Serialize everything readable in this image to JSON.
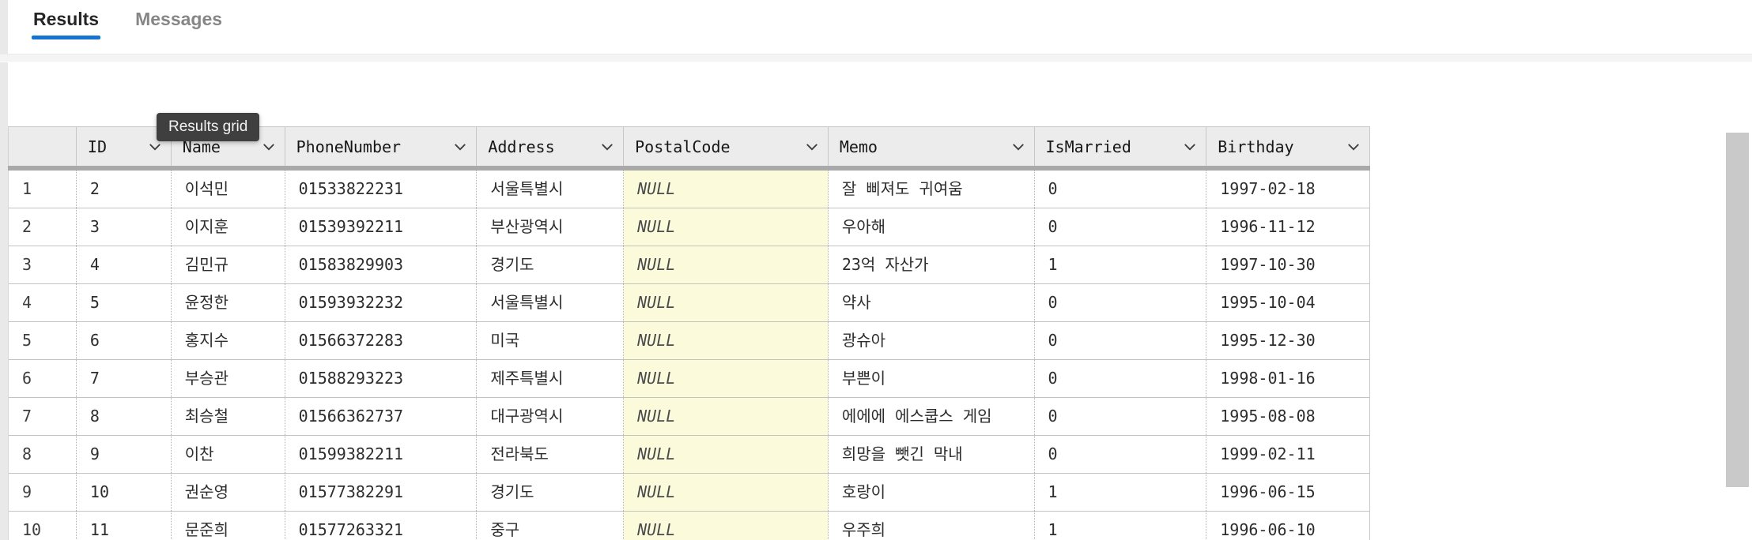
{
  "tabs": [
    {
      "label": "Results",
      "active": true
    },
    {
      "label": "Messages",
      "active": false
    }
  ],
  "tooltip": {
    "text": "Results grid"
  },
  "colors": {
    "active_tab_underline": "#1673d2",
    "tooltip_bg": "#3f3f3f",
    "header_bg": "#ececec",
    "null_cell_bg": "#fbfbdc",
    "scrollbar_thumb": "#c9c9c9"
  },
  "grid": {
    "columns": [
      {
        "label": "ID"
      },
      {
        "label": "Name"
      },
      {
        "label": "PhoneNumber"
      },
      {
        "label": "Address"
      },
      {
        "label": "PostalCode"
      },
      {
        "label": "Memo"
      },
      {
        "label": "IsMarried"
      },
      {
        "label": "Birthday"
      }
    ],
    "null_text": "NULL",
    "rows": [
      {
        "num": "1",
        "cells": [
          "2",
          "이석민",
          "01533822231",
          "서울특별시",
          "NULL",
          "잘 삐져도 귀여움",
          "0",
          "1997-02-18"
        ]
      },
      {
        "num": "2",
        "cells": [
          "3",
          "이지훈",
          "01539392211",
          "부산광역시",
          "NULL",
          "우아해",
          "0",
          "1996-11-12"
        ]
      },
      {
        "num": "3",
        "cells": [
          "4",
          "김민규",
          "01583829903",
          "경기도",
          "NULL",
          "23억 자산가",
          "1",
          "1997-10-30"
        ]
      },
      {
        "num": "4",
        "cells": [
          "5",
          "윤정한",
          "01593932232",
          "서울특별시",
          "NULL",
          "약사",
          "0",
          "1995-10-04"
        ]
      },
      {
        "num": "5",
        "cells": [
          "6",
          "홍지수",
          "01566372283",
          "미국",
          "NULL",
          "광슈아",
          "0",
          "1995-12-30"
        ]
      },
      {
        "num": "6",
        "cells": [
          "7",
          "부승관",
          "01588293223",
          "제주특별시",
          "NULL",
          "부쁜이",
          "0",
          "1998-01-16"
        ]
      },
      {
        "num": "7",
        "cells": [
          "8",
          "최승철",
          "01566362737",
          "대구광역시",
          "NULL",
          "에에에 에스쿱스 게임",
          "0",
          "1995-08-08"
        ]
      },
      {
        "num": "8",
        "cells": [
          "9",
          "이찬",
          "01599382211",
          "전라북도",
          "NULL",
          "희망을 뺏긴 막내",
          "0",
          "1999-02-11"
        ]
      },
      {
        "num": "9",
        "cells": [
          "10",
          "권순영",
          "01577382291",
          "경기도",
          "NULL",
          "호랑이",
          "1",
          "1996-06-15"
        ]
      },
      {
        "num": "10",
        "cells": [
          "11",
          "문준희",
          "01577263321",
          "중구",
          "NULL",
          "우주희",
          "1",
          "1996-06-10"
        ]
      }
    ]
  }
}
